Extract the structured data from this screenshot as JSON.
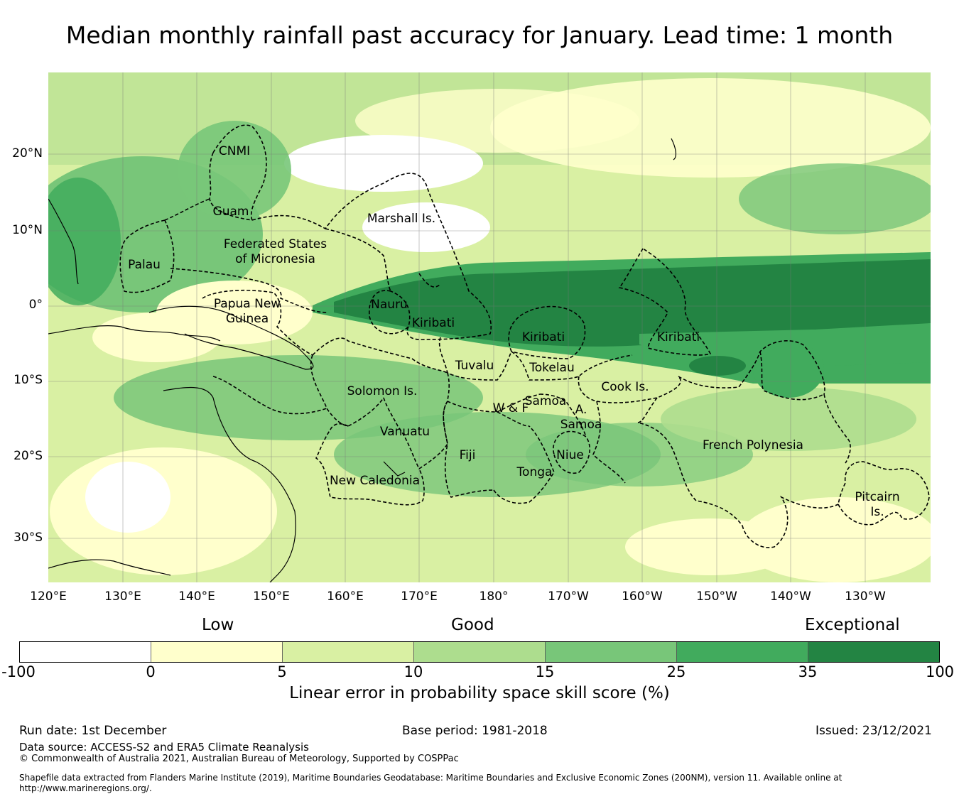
{
  "title": "Median monthly rainfall past accuracy for January. Lead time: 1 month",
  "lat_labels": [
    "20°N",
    "10°N",
    "0°",
    "10°S",
    "20°S",
    "30°S"
  ],
  "lon_labels": [
    "120°E",
    "130°E",
    "140°E",
    "150°E",
    "160°E",
    "170°E",
    "180°",
    "170°W",
    "160°W",
    "150°W",
    "140°W",
    "130°W"
  ],
  "regions": [
    {
      "name": "CNMI"
    },
    {
      "name": "Guam"
    },
    {
      "name": "Marshall Is."
    },
    {
      "name": "Federated States\nof Micronesia"
    },
    {
      "name": "Palau"
    },
    {
      "name": "Papua New\nGuinea"
    },
    {
      "name": "Nauru"
    },
    {
      "name": "Kiribati"
    },
    {
      "name": "Kiribati"
    },
    {
      "name": "Kiribati"
    },
    {
      "name": "Tuvalu"
    },
    {
      "name": "Tokelau"
    },
    {
      "name": "Cook Is."
    },
    {
      "name": "Solomon Is."
    },
    {
      "name": "Samoa"
    },
    {
      "name": "W & F"
    },
    {
      "name": "A.\nSamoa"
    },
    {
      "name": "Vanuatu"
    },
    {
      "name": "Fiji"
    },
    {
      "name": "Niue"
    },
    {
      "name": "Tonga"
    },
    {
      "name": "French Polynesia"
    },
    {
      "name": "New Caledonia"
    },
    {
      "name": "Pitcairn\nIs."
    }
  ],
  "colorbar": {
    "categories": [
      "Low",
      "Good",
      "Exceptional"
    ],
    "ticks": [
      "-100",
      "0",
      "5",
      "10",
      "15",
      "25",
      "35",
      "100"
    ],
    "colors": [
      "#ffffff",
      "#ffffcc",
      "#d9f0a3",
      "#addd8e",
      "#78c679",
      "#41ab5d",
      "#238443"
    ],
    "label": "Linear error in probability space skill score (%)"
  },
  "footer": {
    "run_date": "Run date: 1st December",
    "base_period": "Base period: 1981-2018",
    "issued": "Issued: 23/12/2021",
    "data_source": "Data source: ACCESS-S2 and ERA5 Climate Reanalysis",
    "copyright": "© Commonwealth of Australia 2021, Australian Bureau of Meteorology, Supported by COSPPac",
    "shapefile_line1": "Shapefile data extracted from Flanders Marine Institute (2019), Maritime Boundaries Geodatabase: Maritime Boundaries and Exclusive Economic Zones (200NM), version 11. Available online at",
    "shapefile_line2": "http://www.marineregions.org/."
  }
}
